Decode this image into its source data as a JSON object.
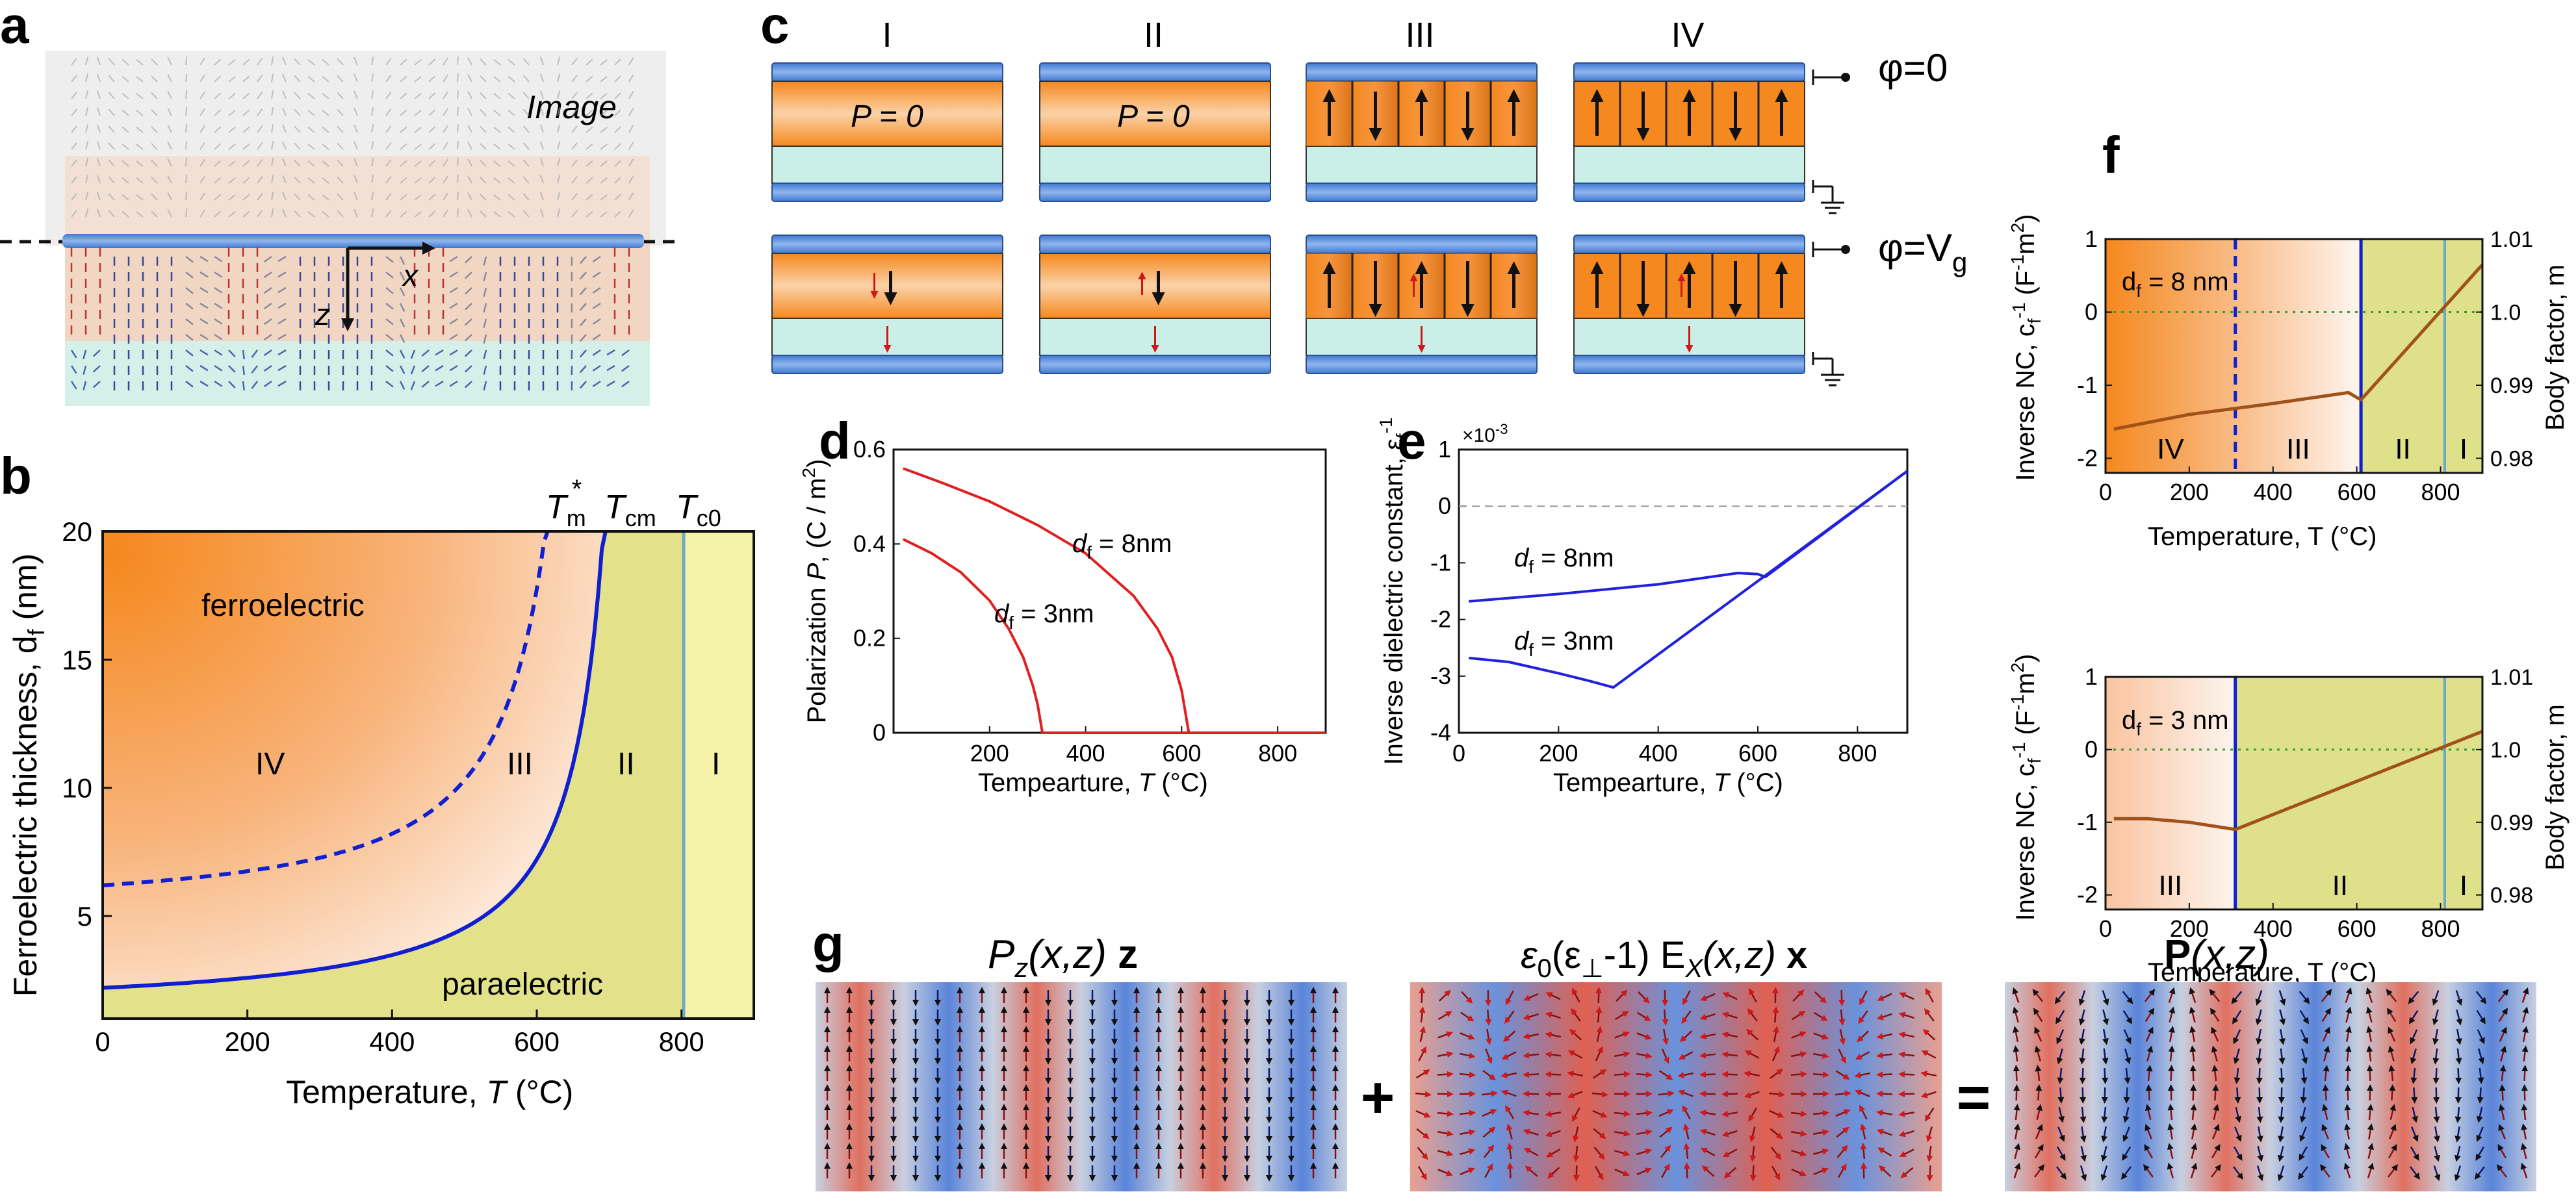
{
  "panel_labels": {
    "a": "a",
    "b": "b",
    "c": "c",
    "d": "d",
    "e": "e",
    "f": "f",
    "g": "g"
  },
  "panel_a": {
    "image_label": "Image",
    "x_axis": "x",
    "z_axis": "z"
  },
  "panel_b": {
    "ylabel": "Ferroelectric thickness, d",
    "ylabel_sub": "f",
    "ylabel_unit": " (nm)",
    "xlabel": "Temperature, ",
    "xlabel_var": "T",
    "xlabel_unit": " (°C)",
    "xticks": [
      "0",
      "200",
      "400",
      "600",
      "800"
    ],
    "yticks": [
      "5",
      "10",
      "15",
      "20"
    ],
    "tm_star": "T",
    "tm_star_sub": "m",
    "tm_star_sup": "*",
    "tcm": "T",
    "tcm_sub": "cm",
    "tc0": "T",
    "tc0_sub": "c0",
    "region_ferroelectric": "ferroelectric",
    "region_paraelectric": "paraelectric",
    "regions": [
      "IV",
      "III",
      "II",
      "I"
    ]
  },
  "panel_c": {
    "columns": [
      "I",
      "II",
      "III",
      "IV"
    ],
    "p_zero": "P = 0",
    "phi_zero": "φ=0",
    "phi_vg": "φ=V",
    "phi_vg_sub": "g"
  },
  "chart_data": [
    {
      "type": "line",
      "panel": "d",
      "xlabel": "Tempearture, T (°C)",
      "ylabel": "Polarization P, (C / m²)",
      "xlim": [
        0,
        900
      ],
      "ylim": [
        0,
        0.6
      ],
      "xticks": [
        "200",
        "400",
        "600",
        "800"
      ],
      "yticks": [
        "0",
        "0.2",
        "0.4",
        "0.6"
      ],
      "series": [
        {
          "name": "d_f = 8nm",
          "x": [
            20,
            100,
            200,
            300,
            400,
            500,
            550,
            580,
            600,
            610,
            615,
            900
          ],
          "y": [
            0.56,
            0.53,
            0.49,
            0.44,
            0.38,
            0.29,
            0.22,
            0.16,
            0.09,
            0.03,
            0,
            0
          ]
        },
        {
          "name": "d_f = 3nm",
          "x": [
            20,
            80,
            140,
            200,
            240,
            270,
            290,
            300,
            310,
            900
          ],
          "y": [
            0.41,
            0.38,
            0.34,
            0.28,
            0.22,
            0.16,
            0.1,
            0.06,
            0,
            0
          ]
        }
      ],
      "labels": {
        "d8": "d",
        "d8_sub": "f",
        "d8_val": " = 8nm",
        "d3": "d",
        "d3_sub": "f",
        "d3_val": " = 3nm",
        "xlabel": "Tempearture, ",
        "xlabel_var": "T",
        "xlabel_unit": " (°C)",
        "ylabel": "Polarization  ",
        "ylabel_var": "P",
        "ylabel_unit": ", (C / m",
        "ylabel_sup": "2",
        "ylabel_close": ")"
      }
    },
    {
      "type": "line",
      "panel": "e",
      "xlabel": "Tempearture, T (°C)",
      "ylabel": "Inverse dielectric constant, ε_f^-1",
      "scale": "×10",
      "scale_exp": "-3",
      "xlim": [
        0,
        900
      ],
      "ylim": [
        -4,
        1
      ],
      "xticks": [
        "0",
        "200",
        "400",
        "600",
        "800"
      ],
      "yticks": [
        "1",
        "0",
        "-1",
        "-2",
        "-3",
        "-4"
      ],
      "series": [
        {
          "name": "d_f = 8nm",
          "x": [
            20,
            200,
            400,
            560,
            600,
            615,
            900
          ],
          "y": [
            -1.68,
            -1.55,
            -1.38,
            -1.18,
            -1.2,
            -1.25,
            0.62
          ]
        },
        {
          "name": "d_f = 3nm",
          "x": [
            20,
            100,
            200,
            260,
            310,
            900
          ],
          "y": [
            -2.68,
            -2.75,
            -2.95,
            -3.08,
            -3.2,
            0.62
          ]
        }
      ],
      "labels": {
        "d8": "d",
        "d8_sub": "f",
        "d8_val": " = 8nm",
        "d3": "d",
        "d3_sub": "f",
        "d3_val": " = 3nm",
        "xlabel": "Tempearture, ",
        "xlabel_var": "T",
        "xlabel_unit": " (°C)",
        "ylabel": "Inverse dielectric constant, ε",
        "ylabel_sub": "f",
        "ylabel_sup": "-1"
      }
    },
    {
      "type": "line",
      "panel": "f-top",
      "title": "d_f = 8 nm",
      "xlim": [
        0,
        900
      ],
      "ylim": [
        -2.2,
        1
      ],
      "y2lim": [
        0.978,
        1.01
      ],
      "xticks": [
        "0",
        "200",
        "400",
        "600",
        "800"
      ],
      "yticks": [
        "1",
        "0",
        "-1",
        "-2"
      ],
      "y2ticks": [
        "1.01",
        "1.0",
        "0.99",
        "0.98"
      ],
      "series": [
        {
          "name": "inverse NC",
          "x": [
            20,
            200,
            400,
            580,
            610,
            900
          ],
          "y": [
            -1.6,
            -1.4,
            -1.25,
            -1.1,
            -1.2,
            0.65
          ]
        }
      ],
      "boundaries": {
        "dashed": 310,
        "solid": 610,
        "light": 810
      },
      "regions": [
        "IV",
        "III",
        "II",
        "I"
      ]
    },
    {
      "type": "line",
      "panel": "f-bottom",
      "title": "d_f = 3 nm",
      "xlim": [
        0,
        900
      ],
      "ylim": [
        -2.2,
        1
      ],
      "y2lim": [
        0.978,
        1.01
      ],
      "xticks": [
        "0",
        "200",
        "400",
        "600",
        "800"
      ],
      "yticks": [
        "1",
        "0",
        "-1",
        "-2"
      ],
      "y2ticks": [
        "1.01",
        "1.0",
        "0.99",
        "0.98"
      ],
      "series": [
        {
          "name": "inverse NC",
          "x": [
            20,
            100,
            200,
            310,
            900
          ],
          "y": [
            -0.95,
            -0.95,
            -1.0,
            -1.1,
            0.25
          ]
        }
      ],
      "boundaries": {
        "solid": 310,
        "light": 810
      },
      "regions": [
        "III",
        "II",
        "I"
      ]
    }
  ],
  "panel_f_labels": {
    "top_title": "d",
    "top_title_sub": "f",
    "top_title_val": " = 8 nm",
    "bottom_title": "d",
    "bottom_title_sub": "f",
    "bottom_title_val": " = 3 nm",
    "ylabel": "Inverse NC, c",
    "ylabel_sub": "f",
    "ylabel_sup": "-1",
    "ylabel_unit": " (F",
    "ylabel_unit_sup": "-1",
    "ylabel_unit2": "m",
    "ylabel_unit_sup2": "2",
    "ylabel_close": ")",
    "y2label": "Body factor, m",
    "xlabel": "Temperature, T (°C)"
  },
  "panel_g": {
    "term1": "P",
    "term1_sub": "z",
    "term1_args": "(x,z) ",
    "term1_vec": "z",
    "term2_eps": "ε",
    "term2_eps_sub": "0",
    "term2_mid": "(ε",
    "term2_perp": "⊥",
    "term2_rest": "-1) E",
    "term2_sub": "X",
    "term2_args": "(x,z) ",
    "term2_vec": "x",
    "term3_vec": "P",
    "term3_args": "(x,z)",
    "plus": "+",
    "equals": "="
  },
  "colors": {
    "orange": "#f5881e",
    "paraelectric": "#e3e28a",
    "ferro_light": "#fbe4d2",
    "lightyellow": "#f4f3a8",
    "blue_line": "#1020d0",
    "red_line": "#e02020",
    "brown_line": "#a0521a",
    "electrode": "#4a86d8",
    "dielectric": "#c9efe8"
  }
}
